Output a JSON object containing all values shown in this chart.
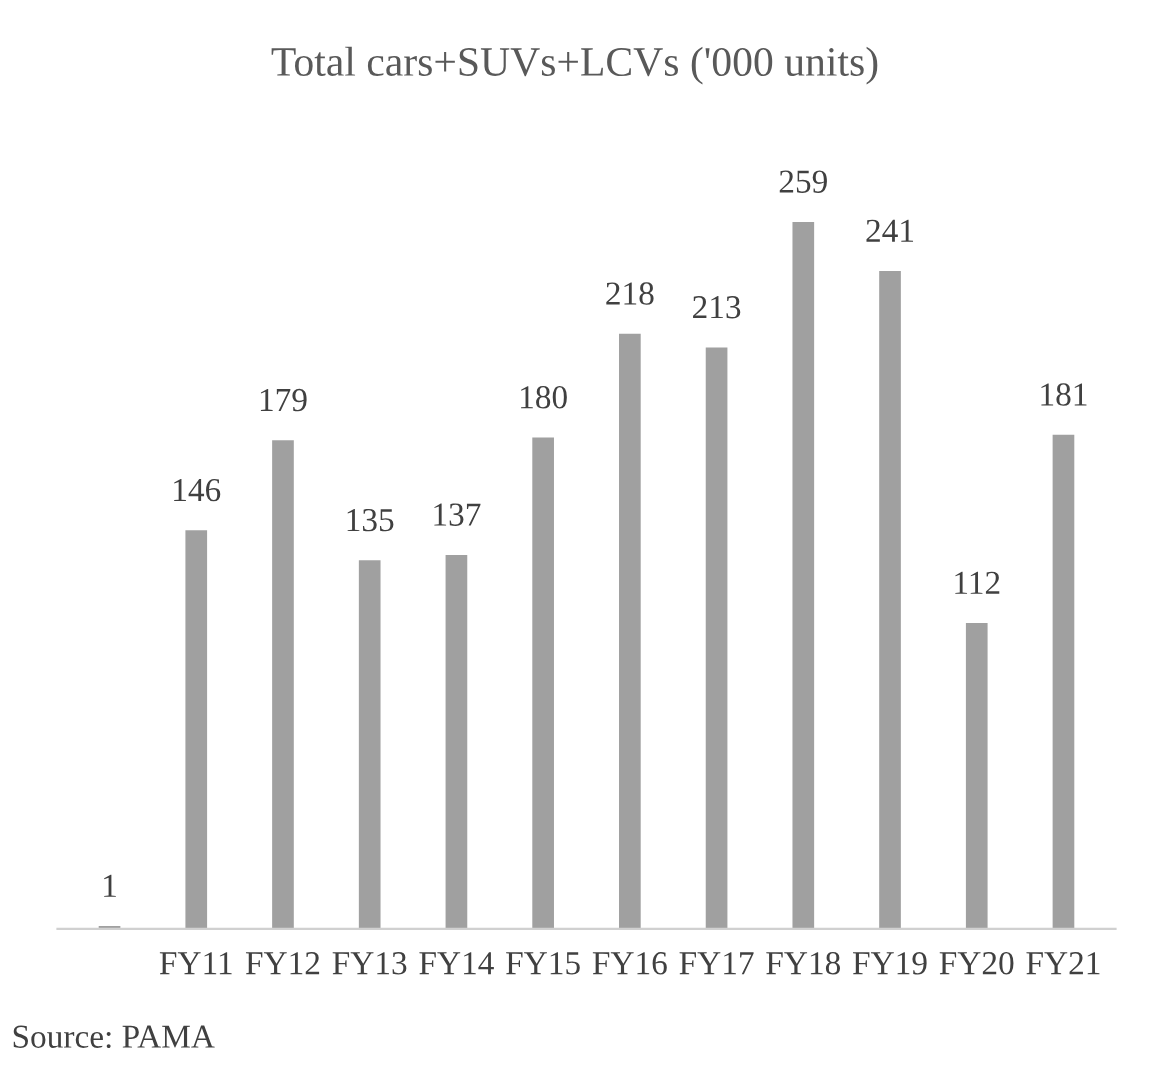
{
  "chart_data": {
    "type": "bar",
    "title": "Total cars+SUVs+LCVs ('000 units)",
    "categories": [
      null,
      "FY11",
      "FY12",
      "FY13",
      "FY14",
      "FY15",
      "FY16",
      "FY17",
      "FY18",
      "FY19",
      "FY20",
      "FY21"
    ],
    "values": [
      1,
      146,
      179,
      135,
      137,
      180,
      218,
      213,
      259,
      241,
      112,
      181
    ],
    "color": "#a0a0a0",
    "data_labels": true,
    "grid": false,
    "legend": false,
    "annotations": [
      "Source: PAMA"
    ]
  }
}
